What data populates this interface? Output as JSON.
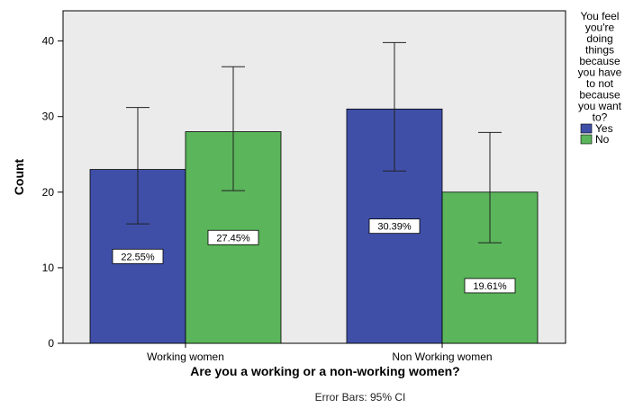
{
  "chart_data": {
    "type": "bar",
    "title": "",
    "xlabel": "Are you a working or a non-working women?",
    "ylabel": "Count",
    "ylim": [
      0,
      44
    ],
    "yticks": [
      0,
      10,
      20,
      30,
      40
    ],
    "grid": false,
    "categories": [
      "Working women",
      "Non Working women"
    ],
    "series": [
      {
        "name": "Yes",
        "color": "#3f4fa8",
        "values": [
          23,
          31
        ],
        "ci_low": [
          15.8,
          22.8
        ],
        "ci_high": [
          31.2,
          39.8
        ],
        "labels": [
          "22.55%",
          "30.39%"
        ]
      },
      {
        "name": "No",
        "color": "#5bb55b",
        "values": [
          28,
          20
        ],
        "ci_low": [
          20.2,
          13.3
        ],
        "ci_high": [
          36.6,
          27.9
        ],
        "labels": [
          "27.45%",
          "19.61%"
        ]
      }
    ],
    "legend": {
      "title_lines": [
        "You feel",
        "you're",
        "doing",
        "things",
        "because",
        "you have",
        "to not",
        "because",
        "you want",
        "to?"
      ],
      "placement": "right"
    },
    "footnote": "Error Bars: 95% CI",
    "plot_background": "#ebebeb"
  }
}
